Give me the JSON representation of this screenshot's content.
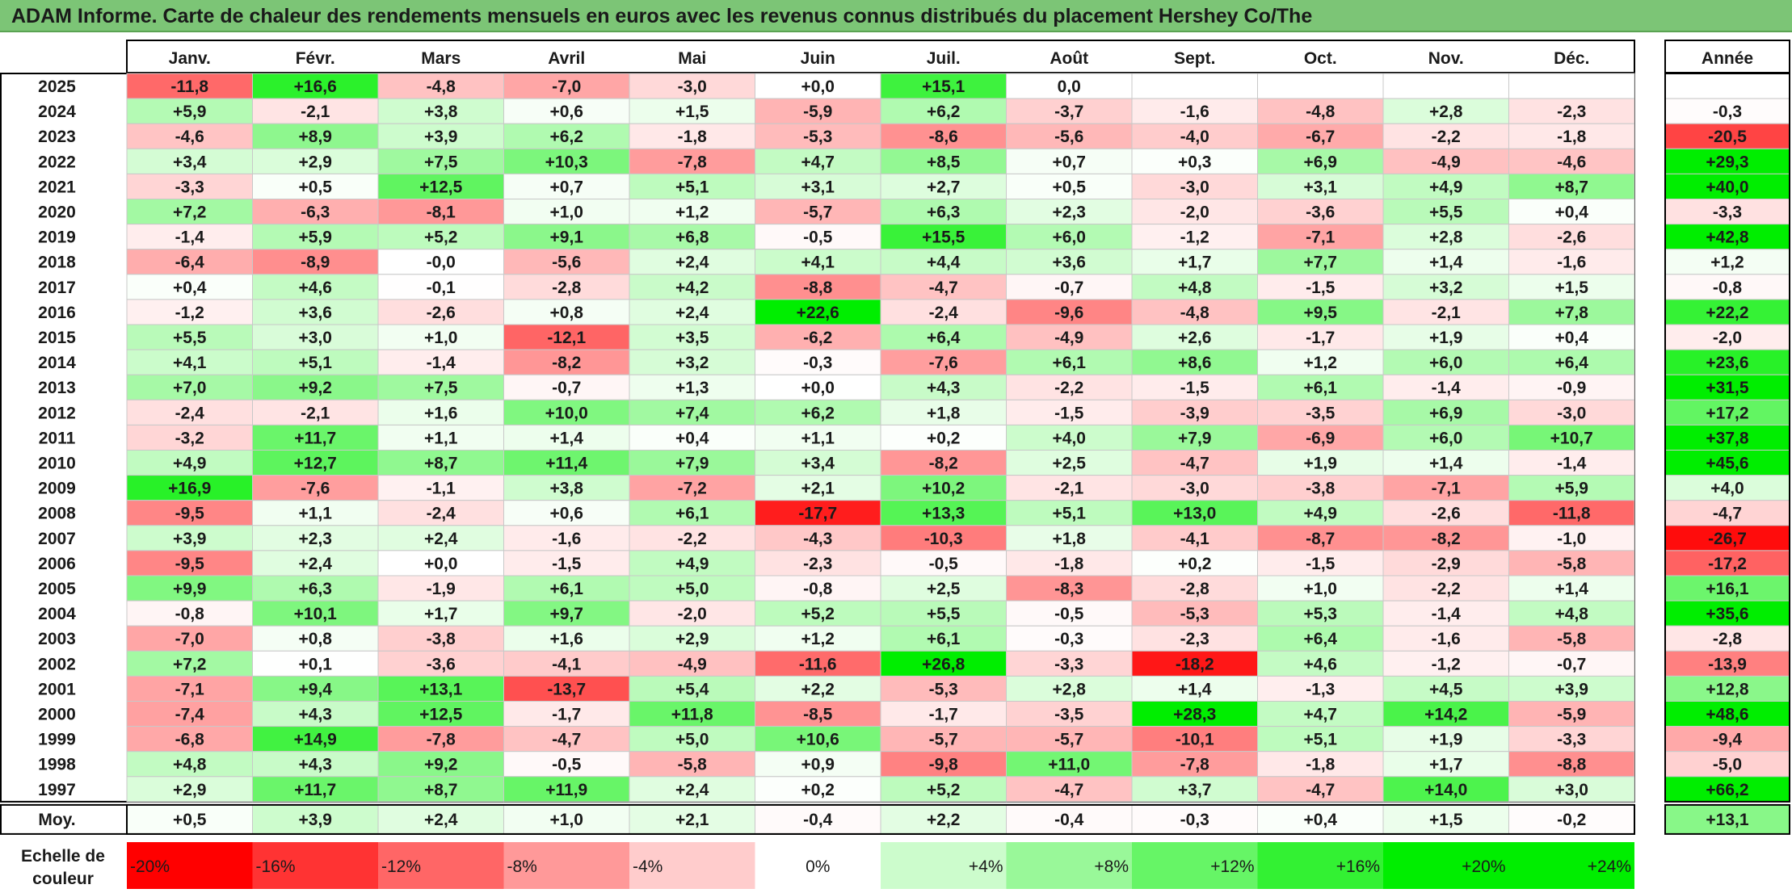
{
  "title": "ADAM Informe. Carte de chaleur des rendements mensuels en euros avec les revenus connus distribués du placement Hershey Co/The",
  "chart_data": {
    "type": "heatmap",
    "months": [
      "Janv.",
      "Févr.",
      "Mars",
      "Avril",
      "Mai",
      "Juin",
      "Juil.",
      "Août",
      "Sept.",
      "Oct.",
      "Nov.",
      "Déc."
    ],
    "year_header": "Année",
    "rows": [
      {
        "year": "2025",
        "values": [
          "-11,8",
          "+16,6",
          "-4,8",
          "-7,0",
          "-3,0",
          "+0,0",
          "+15,1",
          "0,0",
          "",
          "",
          "",
          ""
        ],
        "annual": ""
      },
      {
        "year": "2024",
        "values": [
          "+5,9",
          "-2,1",
          "+3,8",
          "+0,6",
          "+1,5",
          "-5,9",
          "+6,2",
          "-3,7",
          "-1,6",
          "-4,8",
          "+2,8",
          "-2,3"
        ],
        "annual": "-0,3"
      },
      {
        "year": "2023",
        "values": [
          "-4,6",
          "+8,9",
          "+3,9",
          "+6,2",
          "-1,8",
          "-5,3",
          "-8,6",
          "-5,6",
          "-4,0",
          "-6,7",
          "-2,2",
          "-1,8"
        ],
        "annual": "-20,5"
      },
      {
        "year": "2022",
        "values": [
          "+3,4",
          "+2,9",
          "+7,5",
          "+10,3",
          "-7,8",
          "+4,7",
          "+8,5",
          "+0,7",
          "+0,3",
          "+6,9",
          "-4,9",
          "-4,6"
        ],
        "annual": "+29,3"
      },
      {
        "year": "2021",
        "values": [
          "-3,3",
          "+0,5",
          "+12,5",
          "+0,7",
          "+5,1",
          "+3,1",
          "+2,7",
          "+0,5",
          "-3,0",
          "+3,1",
          "+4,9",
          "+8,7"
        ],
        "annual": "+40,0"
      },
      {
        "year": "2020",
        "values": [
          "+7,2",
          "-6,3",
          "-8,1",
          "+1,0",
          "+1,2",
          "-5,7",
          "+6,3",
          "+2,3",
          "-2,0",
          "-3,6",
          "+5,5",
          "+0,4"
        ],
        "annual": "-3,3"
      },
      {
        "year": "2019",
        "values": [
          "-1,4",
          "+5,9",
          "+5,2",
          "+9,1",
          "+6,8",
          "-0,5",
          "+15,5",
          "+6,0",
          "-1,2",
          "-7,1",
          "+2,8",
          "-2,6"
        ],
        "annual": "+42,8"
      },
      {
        "year": "2018",
        "values": [
          "-6,4",
          "-8,9",
          "-0,0",
          "-5,6",
          "+2,4",
          "+4,1",
          "+4,4",
          "+3,6",
          "+1,7",
          "+7,7",
          "+1,4",
          "-1,6"
        ],
        "annual": "+1,2"
      },
      {
        "year": "2017",
        "values": [
          "+0,4",
          "+4,6",
          "-0,1",
          "-2,8",
          "+4,2",
          "-8,8",
          "-4,7",
          "-0,7",
          "+4,8",
          "-1,5",
          "+3,2",
          "+1,5"
        ],
        "annual": "-0,8"
      },
      {
        "year": "2016",
        "values": [
          "-1,2",
          "+3,6",
          "-2,6",
          "+0,8",
          "+2,4",
          "+22,6",
          "-2,4",
          "-9,6",
          "-4,8",
          "+9,5",
          "-2,1",
          "+7,8"
        ],
        "annual": "+22,2"
      },
      {
        "year": "2015",
        "values": [
          "+5,5",
          "+3,0",
          "+1,0",
          "-12,1",
          "+3,5",
          "-6,2",
          "+6,4",
          "-4,9",
          "+2,6",
          "-1,7",
          "+1,9",
          "+0,4"
        ],
        "annual": "-2,0"
      },
      {
        "year": "2014",
        "values": [
          "+4,1",
          "+5,1",
          "-1,4",
          "-8,2",
          "+3,2",
          "-0,3",
          "-7,6",
          "+6,1",
          "+8,6",
          "+1,2",
          "+6,0",
          "+6,4"
        ],
        "annual": "+23,6"
      },
      {
        "year": "2013",
        "values": [
          "+7,0",
          "+9,2",
          "+7,5",
          "-0,7",
          "+1,3",
          "+0,0",
          "+4,3",
          "-2,2",
          "-1,5",
          "+6,1",
          "-1,4",
          "-0,9"
        ],
        "annual": "+31,5"
      },
      {
        "year": "2012",
        "values": [
          "-2,4",
          "-2,1",
          "+1,6",
          "+10,0",
          "+7,4",
          "+6,2",
          "+1,8",
          "-1,5",
          "-3,9",
          "-3,5",
          "+6,9",
          "-3,0"
        ],
        "annual": "+17,2"
      },
      {
        "year": "2011",
        "values": [
          "-3,2",
          "+11,7",
          "+1,1",
          "+1,4",
          "+0,4",
          "+1,1",
          "+0,2",
          "+4,0",
          "+7,9",
          "-6,9",
          "+6,0",
          "+10,7"
        ],
        "annual": "+37,8"
      },
      {
        "year": "2010",
        "values": [
          "+4,9",
          "+12,7",
          "+8,7",
          "+11,4",
          "+7,9",
          "+3,4",
          "-8,2",
          "+2,5",
          "-4,7",
          "+1,9",
          "+1,4",
          "-1,4"
        ],
        "annual": "+45,6"
      },
      {
        "year": "2009",
        "values": [
          "+16,9",
          "-7,6",
          "-1,1",
          "+3,8",
          "-7,2",
          "+2,1",
          "+10,2",
          "-2,1",
          "-3,0",
          "-3,8",
          "-7,1",
          "+5,9"
        ],
        "annual": "+4,0"
      },
      {
        "year": "2008",
        "values": [
          "-9,5",
          "+1,1",
          "-2,4",
          "+0,6",
          "+6,1",
          "-17,7",
          "+13,3",
          "+5,1",
          "+13,0",
          "+4,9",
          "-2,6",
          "-11,8"
        ],
        "annual": "-4,7"
      },
      {
        "year": "2007",
        "values": [
          "+3,9",
          "+2,3",
          "+2,4",
          "-1,6",
          "-2,2",
          "-4,3",
          "-10,3",
          "+1,8",
          "-4,1",
          "-8,7",
          "-8,2",
          "-1,0"
        ],
        "annual": "-26,7"
      },
      {
        "year": "2006",
        "values": [
          "-9,5",
          "+2,4",
          "+0,0",
          "-1,5",
          "+4,9",
          "-2,3",
          "-0,5",
          "-1,8",
          "+0,2",
          "-1,5",
          "-2,9",
          "-5,8"
        ],
        "annual": "-17,2"
      },
      {
        "year": "2005",
        "values": [
          "+9,9",
          "+6,3",
          "-1,9",
          "+6,1",
          "+5,0",
          "-0,8",
          "+2,5",
          "-8,3",
          "-2,8",
          "+1,0",
          "-2,2",
          "+1,4"
        ],
        "annual": "+16,1"
      },
      {
        "year": "2004",
        "values": [
          "-0,8",
          "+10,1",
          "+1,7",
          "+9,7",
          "-2,0",
          "+5,2",
          "+5,5",
          "-0,5",
          "-5,3",
          "+5,3",
          "-1,4",
          "+4,8"
        ],
        "annual": "+35,6"
      },
      {
        "year": "2003",
        "values": [
          "-7,0",
          "+0,8",
          "-3,8",
          "+1,6",
          "+2,9",
          "+1,2",
          "+6,1",
          "-0,3",
          "-2,3",
          "+6,4",
          "-1,6",
          "-5,8"
        ],
        "annual": "-2,8"
      },
      {
        "year": "2002",
        "values": [
          "+7,2",
          "+0,1",
          "-3,6",
          "-4,1",
          "-4,9",
          "-11,6",
          "+26,8",
          "-3,3",
          "-18,2",
          "+4,6",
          "-1,2",
          "-0,7"
        ],
        "annual": "-13,9"
      },
      {
        "year": "2001",
        "values": [
          "-7,1",
          "+9,4",
          "+13,1",
          "-13,7",
          "+5,4",
          "+2,2",
          "-5,3",
          "+2,8",
          "+1,4",
          "-1,3",
          "+4,5",
          "+3,9"
        ],
        "annual": "+12,8"
      },
      {
        "year": "2000",
        "values": [
          "-7,4",
          "+4,3",
          "+12,5",
          "-1,7",
          "+11,8",
          "-8,5",
          "-1,7",
          "-3,5",
          "+28,3",
          "+4,7",
          "+14,2",
          "-5,9"
        ],
        "annual": "+48,6"
      },
      {
        "year": "1999",
        "values": [
          "-6,8",
          "+14,9",
          "-7,8",
          "-4,7",
          "+5,0",
          "+10,6",
          "-5,7",
          "-5,7",
          "-10,1",
          "+5,1",
          "+1,9",
          "-3,3"
        ],
        "annual": "-9,4"
      },
      {
        "year": "1998",
        "values": [
          "+4,8",
          "+4,3",
          "+9,2",
          "-0,5",
          "-5,8",
          "+0,9",
          "-9,8",
          "+11,0",
          "-7,8",
          "-1,8",
          "+1,7",
          "-8,8"
        ],
        "annual": "-5,0"
      },
      {
        "year": "1997",
        "values": [
          "+2,9",
          "+11,7",
          "+8,7",
          "+11,9",
          "+2,4",
          "+0,2",
          "+5,2",
          "-4,7",
          "+3,7",
          "-4,7",
          "+14,0",
          "+3,0"
        ],
        "annual": "+66,2"
      }
    ],
    "average": {
      "label": "Moy.",
      "values": [
        "+0,5",
        "+3,9",
        "+2,4",
        "+1,0",
        "+2,1",
        "-0,4",
        "+2,2",
        "-0,4",
        "-0,3",
        "+0,4",
        "+1,5",
        "-0,2"
      ],
      "annual": "+13,1"
    },
    "legend": {
      "label": "Echelle de couleur",
      "stops": [
        {
          "label": "-20%",
          "value": -20
        },
        {
          "label": "-16%",
          "value": -16
        },
        {
          "label": "-12%",
          "value": -12
        },
        {
          "label": "-8%",
          "value": -8
        },
        {
          "label": "-4%",
          "value": -4
        },
        {
          "label": "0%",
          "value": 0
        },
        {
          "label": "+4%",
          "value": 4
        },
        {
          "label": "+8%",
          "value": 8
        },
        {
          "label": "+12%",
          "value": 12
        },
        {
          "label": "+16%",
          "value": 16
        },
        {
          "label": "+20%",
          "value": 20
        },
        {
          "label": "+24%",
          "value": 24
        }
      ]
    },
    "colors": {
      "negative": "#ff0000",
      "neutral": "#ffffff",
      "positive": "#00ee00"
    }
  }
}
